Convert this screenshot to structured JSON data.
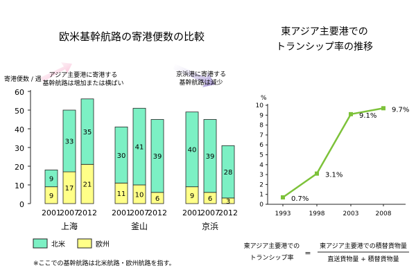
{
  "colors": {
    "north_america": "#7cf0c4",
    "europe": "#ffff88",
    "line": "#7dc23a",
    "bar_stroke": "#222222",
    "arrow_pink": "#f6a4c6",
    "arrow_purple": "#a493d6"
  },
  "chart_data": [
    {
      "type": "bar",
      "stacked": true,
      "title": "欧米基幹航路の寄港便数の比較",
      "ylabel": "寄港便数 / 週",
      "ylim": [
        0,
        60
      ],
      "yticks": [
        0,
        10,
        20,
        30,
        40,
        50,
        60
      ],
      "grid": false,
      "groups": [
        {
          "port": "上海",
          "years": [
            "2001",
            "2007",
            "2012"
          ],
          "north_america": [
            9,
            33,
            35
          ],
          "europe": [
            9,
            17,
            21
          ]
        },
        {
          "port": "釜山",
          "years": [
            "2001",
            "2007",
            "2012"
          ],
          "north_america": [
            30,
            41,
            39
          ],
          "europe": [
            11,
            10,
            6
          ]
        },
        {
          "port": "京浜",
          "years": [
            "2001",
            "2007",
            "2012"
          ],
          "north_america": [
            40,
            39,
            28
          ],
          "europe": [
            9,
            6,
            3
          ]
        }
      ],
      "legend": [
        {
          "key": "north_america",
          "label": "北米"
        },
        {
          "key": "europe",
          "label": "欧州"
        }
      ],
      "legend_position": "bottom-left",
      "annotations": [
        {
          "text": [
            "アジア主要港に寄港する",
            "基幹航路は増加または横ばい"
          ],
          "arrow": "up"
        },
        {
          "text": [
            "京浜港に寄港する",
            "基幹航路は減少"
          ],
          "arrow": "down"
        }
      ],
      "note": "※ここでの基幹航路は北米航路・欧州航路を指す。"
    },
    {
      "type": "line",
      "title": [
        "東アジア主要港での",
        "トランシップ率の推移"
      ],
      "ylabel": "%",
      "ylim": [
        0,
        10
      ],
      "yticks": [
        0,
        1,
        2,
        3,
        4,
        5,
        6,
        7,
        8,
        9,
        10
      ],
      "x": [
        "1993",
        "1998",
        "2003",
        "2008"
      ],
      "y": [
        0.7,
        3.1,
        9.1,
        9.7
      ],
      "point_labels": [
        "0.7%",
        "3.1%",
        "9.1%",
        "9.7%"
      ],
      "grid": false
    }
  ],
  "formula": {
    "lhs": [
      "東アジア主要港での",
      "トランシップ率"
    ],
    "equals": "=",
    "numerator": "東アジア主要港での積替貨物量",
    "denominator": "直送貨物量 + 積替貨物量"
  }
}
